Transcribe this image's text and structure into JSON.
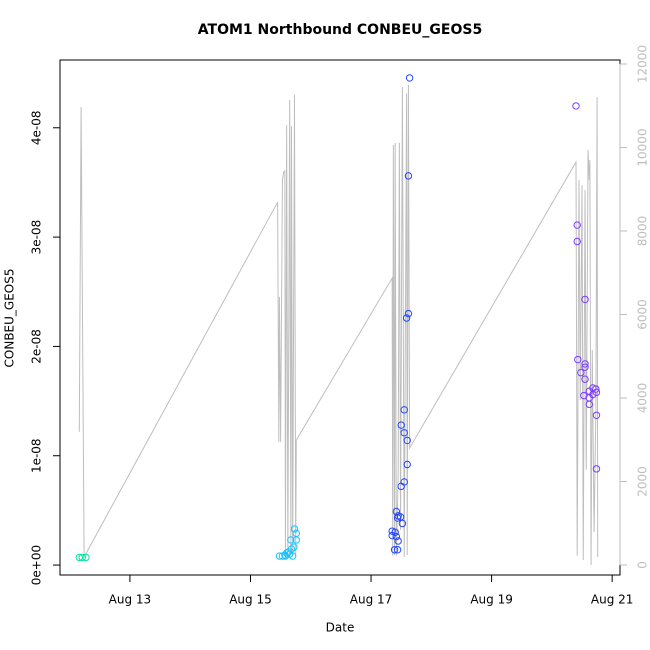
{
  "chart_data": {
    "type": "scatter",
    "title": "ATOM1 Northbound CONBEU_GEOS5",
    "x_label": "Date",
    "y_label": "CONBEU_GEOS5",
    "xlim": [
      11.84,
      21.13
    ],
    "xticks": [
      {
        "value": 13,
        "label": "Aug 13"
      },
      {
        "value": 15,
        "label": "Aug 15"
      },
      {
        "value": 17,
        "label": "Aug 17"
      },
      {
        "value": 19,
        "label": "Aug 19"
      },
      {
        "value": 21,
        "label": "Aug 21"
      }
    ],
    "ylim": [
      -9.1e-10,
      4.62e-08
    ],
    "yticks": [
      {
        "value": 0,
        "label": "0e+00"
      },
      {
        "value": 1e-08,
        "label": "1e-08"
      },
      {
        "value": 2e-08,
        "label": "2e-08"
      },
      {
        "value": 3e-08,
        "label": "3e-08"
      },
      {
        "value": 4e-08,
        "label": "4e-08"
      }
    ],
    "y2lim": [
      -240,
      12096
    ],
    "y2ticks": [
      0,
      2000,
      4000,
      6000,
      8000,
      10000,
      12000
    ],
    "y2_color": "#bebebe",
    "grid": false,
    "series": [
      {
        "type": "line",
        "axis": "y2",
        "color": "#bebebe",
        "x": [
          12.16,
          12.19,
          12.24,
          15.45,
          15.47,
          15.48,
          15.5,
          15.53,
          15.55,
          15.57,
          15.58,
          15.6,
          15.62,
          15.65,
          15.67,
          15.68,
          15.7,
          15.73,
          15.75,
          15.76,
          17.35,
          17.36,
          17.37,
          17.39,
          17.4,
          17.42,
          17.45,
          17.47,
          17.49,
          17.52,
          17.55,
          17.59,
          17.6,
          17.62,
          17.64,
          20.4,
          20.42,
          20.45,
          20.47,
          20.5,
          20.52,
          20.55,
          20.57,
          20.6,
          20.62,
          20.63,
          20.65,
          20.67,
          20.7,
          20.73,
          20.75,
          20.76
        ],
        "values": [
          3190,
          10970,
          190,
          8690,
          2950,
          6420,
          2950,
          9220,
          9410,
          9440,
          220,
          10540,
          190,
          11140,
          220,
          10510,
          240,
          11260,
          190,
          2990,
          6870,
          220,
          10060,
          240,
          10110,
          220,
          2160,
          10110,
          840,
          11450,
          190,
          11300,
          240,
          11500,
          2800,
          9650,
          220,
          9220,
          3950,
          9100,
          120,
          8980,
          2280,
          9940,
          9220,
          9700,
          0,
          5150,
          790,
          3760,
          11210,
          190
        ]
      },
      {
        "type": "scatter",
        "color": "#00e5a0",
        "x": [
          12.16,
          12.21,
          12.27
        ],
        "values": [
          7e-10,
          7e-10,
          7e-10
        ]
      },
      {
        "type": "scatter",
        "color": "#19c3ff",
        "x": [
          15.48,
          15.53,
          15.57,
          15.58,
          15.6,
          15.63,
          15.65,
          15.68,
          15.7,
          15.72,
          15.67,
          15.73,
          15.76,
          15.76
        ],
        "values": [
          8.2e-10,
          8.2e-10,
          9.1e-10,
          8.2e-10,
          1.1e-09,
          1.2e-09,
          1e-09,
          1.46e-09,
          8.2e-10,
          1.65e-09,
          2.3e-09,
          3.3e-09,
          2.9e-09,
          2.3e-09
        ]
      },
      {
        "type": "scatter",
        "color": "#2347ff",
        "x": [
          17.64,
          17.62,
          17.62,
          17.59,
          17.55,
          17.5,
          17.55,
          17.6,
          17.6,
          17.55,
          17.5,
          17.42,
          17.45,
          17.49,
          17.44,
          17.52,
          17.35,
          17.4,
          17.35,
          17.42,
          17.45,
          17.39,
          17.44
        ],
        "values": [
          4.456e-08,
          3.56e-08,
          2.3e-08,
          2.26e-08,
          1.42e-08,
          1.28e-08,
          1.21e-08,
          1.14e-08,
          9.2e-09,
          7.6e-09,
          7.2e-09,
          4.9e-09,
          4.5e-09,
          4.4e-09,
          4.3e-09,
          3.8e-09,
          3.1e-09,
          3e-09,
          2.7e-09,
          2.6e-09,
          2.2e-09,
          1.4e-09,
          1.4e-09
        ]
      },
      {
        "type": "scatter",
        "color": "#7c3cff",
        "x": [
          20.4,
          20.42,
          20.42,
          20.55,
          20.43,
          20.55,
          20.55,
          20.48,
          20.55,
          20.68,
          20.73,
          20.62,
          20.74,
          20.68,
          20.53,
          20.62,
          20.62,
          20.74,
          20.74
        ],
        "values": [
          4.2e-08,
          3.11e-08,
          2.96e-08,
          2.43e-08,
          1.88e-08,
          1.84e-08,
          1.81e-08,
          1.76e-08,
          1.7e-08,
          1.62e-08,
          1.61e-08,
          1.59e-08,
          1.58e-08,
          1.56e-08,
          1.55e-08,
          1.53e-08,
          1.47e-08,
          1.37e-08,
          8.8e-09
        ]
      }
    ]
  }
}
